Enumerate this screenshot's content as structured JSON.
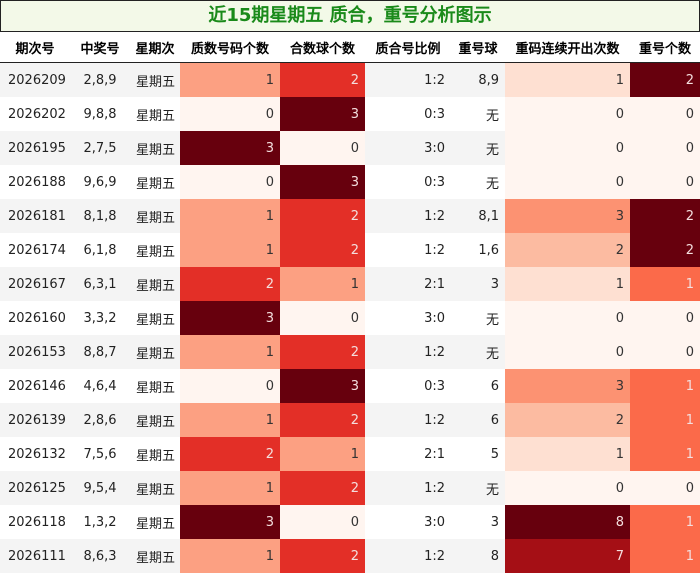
{
  "title": "近15期星期五 质合，重号分析图示",
  "chart_data": {
    "type": "table",
    "columns": [
      "期次号",
      "中奖号",
      "星期次",
      "质数号码个数",
      "合数球个数",
      "质合号比例",
      "重号球",
      "重码连续开出次数",
      "重号个数"
    ],
    "rows": [
      [
        "2026209",
        "2,8,9",
        "星期五",
        1,
        2,
        "1:2",
        "8,9",
        1,
        2
      ],
      [
        "2026202",
        "9,8,8",
        "星期五",
        0,
        3,
        "0:3",
        "无",
        0,
        0
      ],
      [
        "2026195",
        "2,7,5",
        "星期五",
        3,
        0,
        "3:0",
        "无",
        0,
        0
      ],
      [
        "2026188",
        "9,6,9",
        "星期五",
        0,
        3,
        "0:3",
        "无",
        0,
        0
      ],
      [
        "2026181",
        "8,1,8",
        "星期五",
        1,
        2,
        "1:2",
        "8,1",
        3,
        2
      ],
      [
        "2026174",
        "6,1,8",
        "星期五",
        1,
        2,
        "1:2",
        "1,6",
        2,
        2
      ],
      [
        "2026167",
        "6,3,1",
        "星期五",
        2,
        1,
        "2:1",
        "3",
        1,
        1
      ],
      [
        "2026160",
        "3,3,2",
        "星期五",
        3,
        0,
        "3:0",
        "无",
        0,
        0
      ],
      [
        "2026153",
        "8,8,7",
        "星期五",
        1,
        2,
        "1:2",
        "无",
        0,
        0
      ],
      [
        "2026146",
        "4,6,4",
        "星期五",
        0,
        3,
        "0:3",
        "6",
        3,
        1
      ],
      [
        "2026139",
        "2,8,6",
        "星期五",
        1,
        2,
        "1:2",
        "6",
        2,
        1
      ],
      [
        "2026132",
        "7,5,6",
        "星期五",
        2,
        1,
        "2:1",
        "5",
        1,
        1
      ],
      [
        "2026125",
        "9,5,4",
        "星期五",
        1,
        2,
        "1:2",
        "无",
        0,
        0
      ],
      [
        "2026118",
        "1,3,2",
        "星期五",
        3,
        0,
        "3:0",
        "3",
        8,
        1
      ],
      [
        "2026111",
        "8,6,3",
        "星期五",
        1,
        2,
        "1:2",
        "8",
        7,
        1
      ]
    ],
    "heat_columns": [
      3,
      4,
      7,
      8
    ],
    "color_scale": "Reds"
  }
}
